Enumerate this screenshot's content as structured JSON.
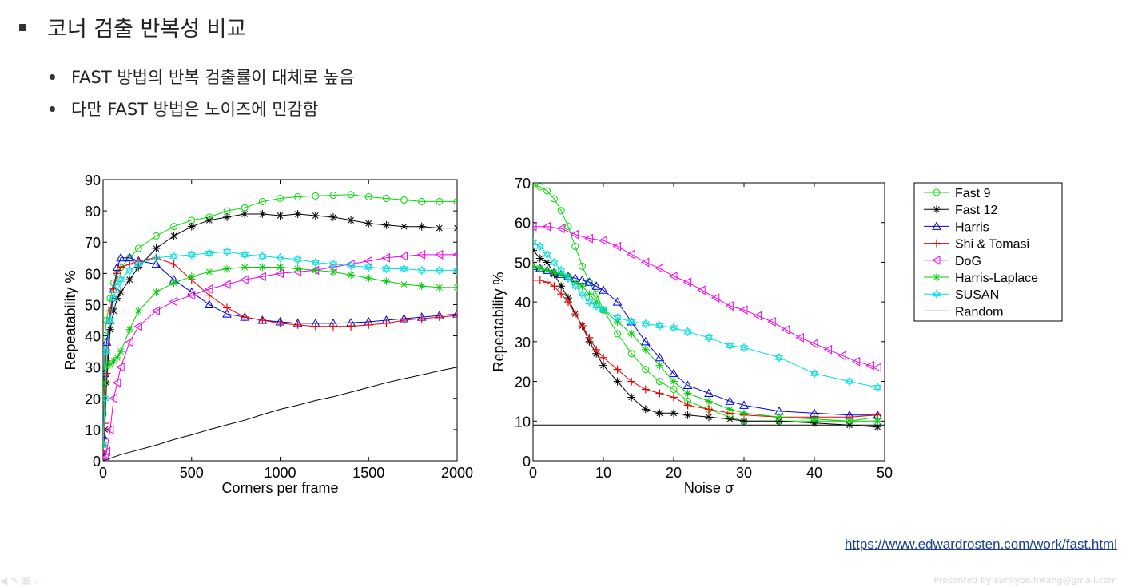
{
  "slide": {
    "title": "코너 검출 반복성 비교",
    "bullets": [
      "FAST 방법의 반복 검출률이 대체로 높음",
      "다만 FAST 방법은 노이즈에 민감함"
    ],
    "link": "https://www.edwardrosten.com/work/fast.html",
    "footer": "Presented by sunkyoo.hwang@gmail.com"
  },
  "chart_data": [
    {
      "type": "line",
      "xlabel": "Corners per frame",
      "ylabel": "Repeatability %",
      "xlim": [
        0,
        2000
      ],
      "ylim": [
        0,
        90
      ],
      "xticks": [
        0,
        500,
        1000,
        1500,
        2000
      ],
      "yticks": [
        0,
        10,
        20,
        30,
        40,
        50,
        60,
        70,
        80,
        90
      ],
      "series": [
        {
          "name": "Fast 9",
          "color": "#00dd00",
          "marker": "circle",
          "x": [
            0,
            10,
            20,
            40,
            60,
            80,
            100,
            150,
            200,
            300,
            400,
            500,
            600,
            700,
            800,
            900,
            1000,
            1100,
            1200,
            1300,
            1400,
            1500,
            1600,
            1700,
            1800,
            1900,
            2000
          ],
          "y": [
            15,
            40,
            45,
            52,
            57,
            60,
            62,
            65,
            68,
            72,
            75,
            77,
            78,
            80,
            81,
            83,
            84,
            84.5,
            84.8,
            85,
            85.2,
            84.5,
            84,
            83.5,
            83,
            83,
            83
          ]
        },
        {
          "name": "Fast 12",
          "color": "#000000",
          "marker": "star",
          "x": [
            0,
            10,
            20,
            40,
            60,
            80,
            100,
            150,
            200,
            300,
            400,
            500,
            600,
            700,
            800,
            900,
            1000,
            1100,
            1200,
            1300,
            1400,
            1500,
            1600,
            1700,
            1800,
            1900,
            2000
          ],
          "y": [
            2,
            10,
            25,
            42,
            48,
            52,
            54,
            58,
            62,
            68,
            72,
            75,
            77,
            78,
            79,
            79,
            78.5,
            79,
            78.5,
            78,
            77,
            76,
            75.5,
            75,
            75,
            74.5,
            74.5
          ]
        },
        {
          "name": "Harris",
          "color": "#0000dd",
          "marker": "triangle",
          "x": [
            0,
            10,
            20,
            40,
            60,
            80,
            100,
            150,
            200,
            300,
            400,
            500,
            600,
            700,
            800,
            900,
            1000,
            1100,
            1200,
            1300,
            1400,
            1500,
            1600,
            1700,
            1800,
            1900,
            2000
          ],
          "y": [
            8,
            28,
            38,
            45,
            55,
            62,
            65,
            65,
            64,
            63,
            58,
            54,
            50,
            47,
            46,
            45,
            44.5,
            44,
            44,
            44,
            44.2,
            44.5,
            45,
            45.5,
            46,
            46.5,
            47
          ]
        },
        {
          "name": "Shi & Tomasi",
          "color": "#ee0000",
          "marker": "plus",
          "x": [
            0,
            10,
            20,
            40,
            60,
            80,
            100,
            150,
            200,
            300,
            400,
            500,
            600,
            700,
            800,
            900,
            1000,
            1100,
            1200,
            1300,
            1400,
            1500,
            1600,
            1700,
            1800,
            1900,
            2000
          ],
          "y": [
            3,
            12,
            28,
            48,
            55,
            60,
            62,
            63,
            64,
            65,
            63,
            58,
            53,
            49,
            46,
            45,
            44,
            43.5,
            43,
            43,
            43,
            43.5,
            44,
            45,
            45.5,
            46,
            46.5
          ]
        },
        {
          "name": "DoG",
          "color": "#ee00ee",
          "marker": "triangle-left",
          "x": [
            0,
            10,
            20,
            40,
            60,
            80,
            100,
            150,
            200,
            300,
            400,
            500,
            600,
            700,
            800,
            900,
            1000,
            1100,
            1200,
            1300,
            1400,
            1500,
            1600,
            1700,
            1800,
            1900,
            2000
          ],
          "y": [
            0,
            1,
            3,
            10,
            20,
            25,
            30,
            38,
            43,
            48,
            51,
            53,
            55,
            56.5,
            58,
            59,
            60,
            60.5,
            61,
            62,
            63,
            64,
            65,
            65.5,
            66,
            66,
            66
          ]
        },
        {
          "name": "Harris-Laplace",
          "color": "#00cc00",
          "marker": "star",
          "x": [
            0,
            10,
            20,
            40,
            60,
            80,
            100,
            150,
            200,
            300,
            400,
            500,
            600,
            700,
            800,
            900,
            1000,
            1100,
            1200,
            1300,
            1400,
            1500,
            1600,
            1700,
            1800,
            1900,
            2000
          ],
          "y": [
            5,
            25,
            30,
            31,
            32,
            33,
            35,
            42,
            48,
            54,
            57,
            59,
            60.5,
            61.5,
            62,
            62,
            62,
            61.5,
            61,
            60.5,
            59.5,
            58.5,
            57.5,
            56.5,
            56,
            55.5,
            55.5
          ]
        },
        {
          "name": "SUSAN",
          "color": "#00dddd",
          "marker": "hexagram",
          "x": [
            0,
            10,
            20,
            40,
            60,
            80,
            100,
            150,
            200,
            300,
            400,
            500,
            600,
            700,
            800,
            900,
            1000,
            1100,
            1200,
            1300,
            1400,
            1500,
            1600,
            1700,
            1800,
            1900,
            2000
          ],
          "y": [
            5,
            20,
            35,
            45,
            52,
            56,
            58,
            61,
            63,
            65,
            65.5,
            66,
            66.5,
            67,
            66,
            65.5,
            65,
            64.5,
            63.5,
            63,
            62.5,
            62,
            61.5,
            61.5,
            61,
            61,
            61
          ]
        },
        {
          "name": "Random",
          "color": "#000000",
          "marker": "none",
          "x": [
            0,
            100,
            200,
            300,
            400,
            500,
            600,
            700,
            800,
            900,
            1000,
            1100,
            1200,
            1300,
            1400,
            1500,
            1600,
            1700,
            1800,
            1900,
            2000
          ],
          "y": [
            0,
            2,
            3.5,
            5,
            6.8,
            8.3,
            10,
            11.5,
            13,
            14.8,
            16.5,
            17.8,
            19.3,
            20.5,
            22,
            23.5,
            25,
            26.3,
            27.5,
            28.8,
            30
          ]
        }
      ]
    },
    {
      "type": "line",
      "xlabel": "Noise σ",
      "ylabel": "Repeatability %",
      "xlim": [
        0,
        50
      ],
      "ylim": [
        0,
        70
      ],
      "xticks": [
        0,
        10,
        20,
        30,
        40,
        50
      ],
      "yticks": [
        0,
        10,
        20,
        30,
        40,
        50,
        60,
        70
      ],
      "legend": "right",
      "series": [
        {
          "name": "Fast 9",
          "color": "#00dd00",
          "marker": "circle",
          "x": [
            0,
            1,
            2,
            3,
            4,
            5,
            6,
            7,
            8,
            9,
            10,
            12,
            14,
            16,
            18,
            20,
            22,
            25,
            28,
            30,
            35,
            40,
            45,
            49
          ],
          "y": [
            69.5,
            69,
            68,
            66,
            63,
            59,
            54,
            49,
            45,
            42,
            38,
            32,
            27,
            23,
            20,
            18,
            15,
            13,
            11,
            10,
            10,
            10,
            10,
            11
          ]
        },
        {
          "name": "Fast 12",
          "color": "#000000",
          "marker": "star",
          "x": [
            0,
            1,
            2,
            3,
            4,
            5,
            6,
            7,
            8,
            9,
            10,
            12,
            14,
            16,
            18,
            20,
            22,
            25,
            28,
            30,
            35,
            40,
            45,
            49
          ],
          "y": [
            53,
            51,
            50,
            47,
            44,
            41,
            37,
            34,
            30,
            27,
            24,
            20,
            16,
            13,
            12,
            12,
            11.5,
            11,
            10.5,
            10,
            10,
            9.5,
            9,
            8.5
          ]
        },
        {
          "name": "Harris",
          "color": "#0000dd",
          "marker": "triangle",
          "x": [
            0,
            1,
            2,
            3,
            4,
            5,
            6,
            7,
            8,
            9,
            10,
            12,
            14,
            16,
            18,
            20,
            22,
            25,
            28,
            30,
            35,
            40,
            45,
            49
          ],
          "y": [
            49,
            48.5,
            48,
            47.5,
            47,
            46.5,
            46,
            45.5,
            45,
            44,
            43,
            40,
            35,
            30,
            26,
            22,
            19,
            17,
            15,
            14,
            12.5,
            12,
            11.5,
            11.5
          ]
        },
        {
          "name": "Shi & Tomasi",
          "color": "#ee0000",
          "marker": "plus",
          "x": [
            0,
            1,
            2,
            3,
            4,
            5,
            6,
            7,
            8,
            9,
            10,
            12,
            14,
            16,
            18,
            20,
            22,
            25,
            28,
            30,
            35,
            40,
            45,
            49
          ],
          "y": [
            45.5,
            45.5,
            45,
            44,
            42,
            40,
            37,
            34,
            31,
            28,
            26,
            23,
            20,
            18,
            17,
            16,
            14,
            13,
            12,
            11.5,
            11,
            11,
            11,
            11.5
          ]
        },
        {
          "name": "DoG",
          "color": "#ee00ee",
          "marker": "triangle-left",
          "x": [
            0,
            2,
            4,
            6,
            8,
            10,
            12,
            14,
            16,
            18,
            20,
            22,
            24,
            26,
            28,
            30,
            32,
            34,
            36,
            38,
            40,
            42,
            44,
            46,
            48,
            49
          ],
          "y": [
            59,
            59,
            58.5,
            57,
            56,
            55.5,
            54,
            52,
            50,
            48.5,
            46.5,
            45,
            43,
            41,
            39,
            38,
            36.5,
            35,
            33,
            31,
            29.5,
            28,
            26.5,
            25,
            24,
            23.5
          ]
        },
        {
          "name": "Harris-Laplace",
          "color": "#00cc00",
          "marker": "star",
          "x": [
            0,
            1,
            2,
            3,
            4,
            5,
            6,
            7,
            8,
            9,
            10,
            12,
            14,
            16,
            18,
            20,
            22,
            25,
            28,
            30,
            35,
            40,
            45,
            49
          ],
          "y": [
            49,
            48.5,
            48,
            47.5,
            47,
            46.5,
            45,
            44,
            42,
            40,
            38,
            35,
            32,
            28,
            24,
            20,
            17,
            15,
            13,
            12,
            11,
            10.5,
            10,
            10
          ]
        },
        {
          "name": "SUSAN",
          "color": "#00dddd",
          "marker": "hexagram",
          "x": [
            0,
            1,
            2,
            3,
            4,
            5,
            6,
            7,
            8,
            9,
            10,
            12,
            14,
            16,
            18,
            20,
            22,
            25,
            28,
            30,
            35,
            40,
            45,
            49
          ],
          "y": [
            55,
            54,
            52,
            50,
            48,
            46,
            44,
            42,
            40,
            39,
            38,
            36,
            35,
            34.5,
            34,
            33.5,
            32.5,
            31,
            29,
            28.5,
            26,
            22,
            20,
            18.5
          ]
        },
        {
          "name": "Random",
          "color": "#000000",
          "marker": "none",
          "x": [
            0,
            50
          ],
          "y": [
            9,
            9
          ]
        }
      ]
    }
  ]
}
